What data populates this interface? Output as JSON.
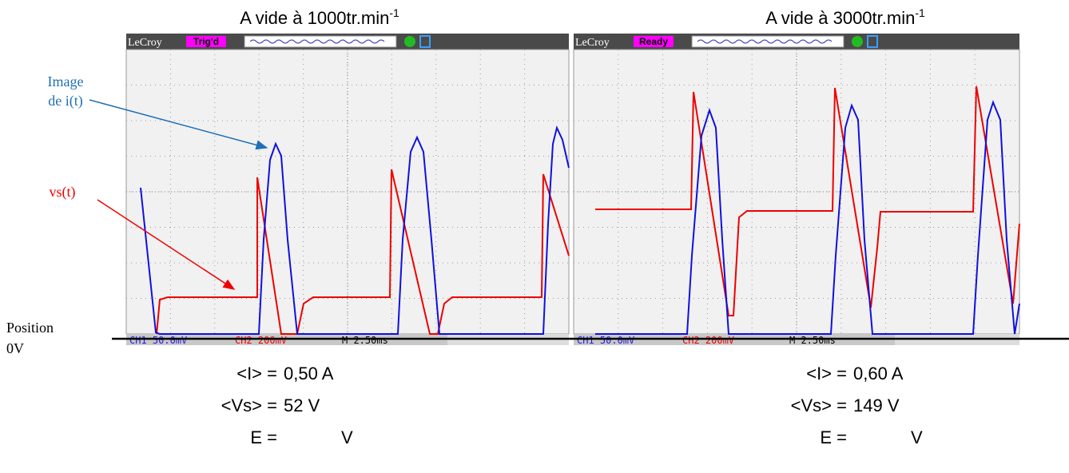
{
  "panels": [
    {
      "title": "A vide à 1000tr.min",
      "title_sup": "-1",
      "scope": {
        "brand": "LeCroy",
        "status": "Trig'd",
        "ch1": "CH1 50.0mV",
        "ch2": "CH2 200mV",
        "timebase": "M 2.50ms"
      },
      "results": [
        {
          "label": "<I> =",
          "value": "0,50 A"
        },
        {
          "label": "<Vs> =",
          "value": "52 V"
        },
        {
          "label": "E =",
          "value": "V"
        }
      ]
    },
    {
      "title": "A vide à 3000tr.min",
      "title_sup": "-1",
      "scope": {
        "brand": "LeCroy",
        "status": "Ready",
        "ch1": "CH1 50.0mV",
        "ch2": "CH2 200mV",
        "timebase": "M 2.50ms"
      },
      "results": [
        {
          "label": "<I> =",
          "value": "0,60 A"
        },
        {
          "label": "<Vs> =",
          "value": "149 V"
        },
        {
          "label": "E =",
          "value": "V"
        }
      ]
    }
  ],
  "annotations": {
    "current": [
      "Image",
      "de i(t)"
    ],
    "voltage": "vs(t)",
    "zero": [
      "Position",
      "0V"
    ]
  }
}
